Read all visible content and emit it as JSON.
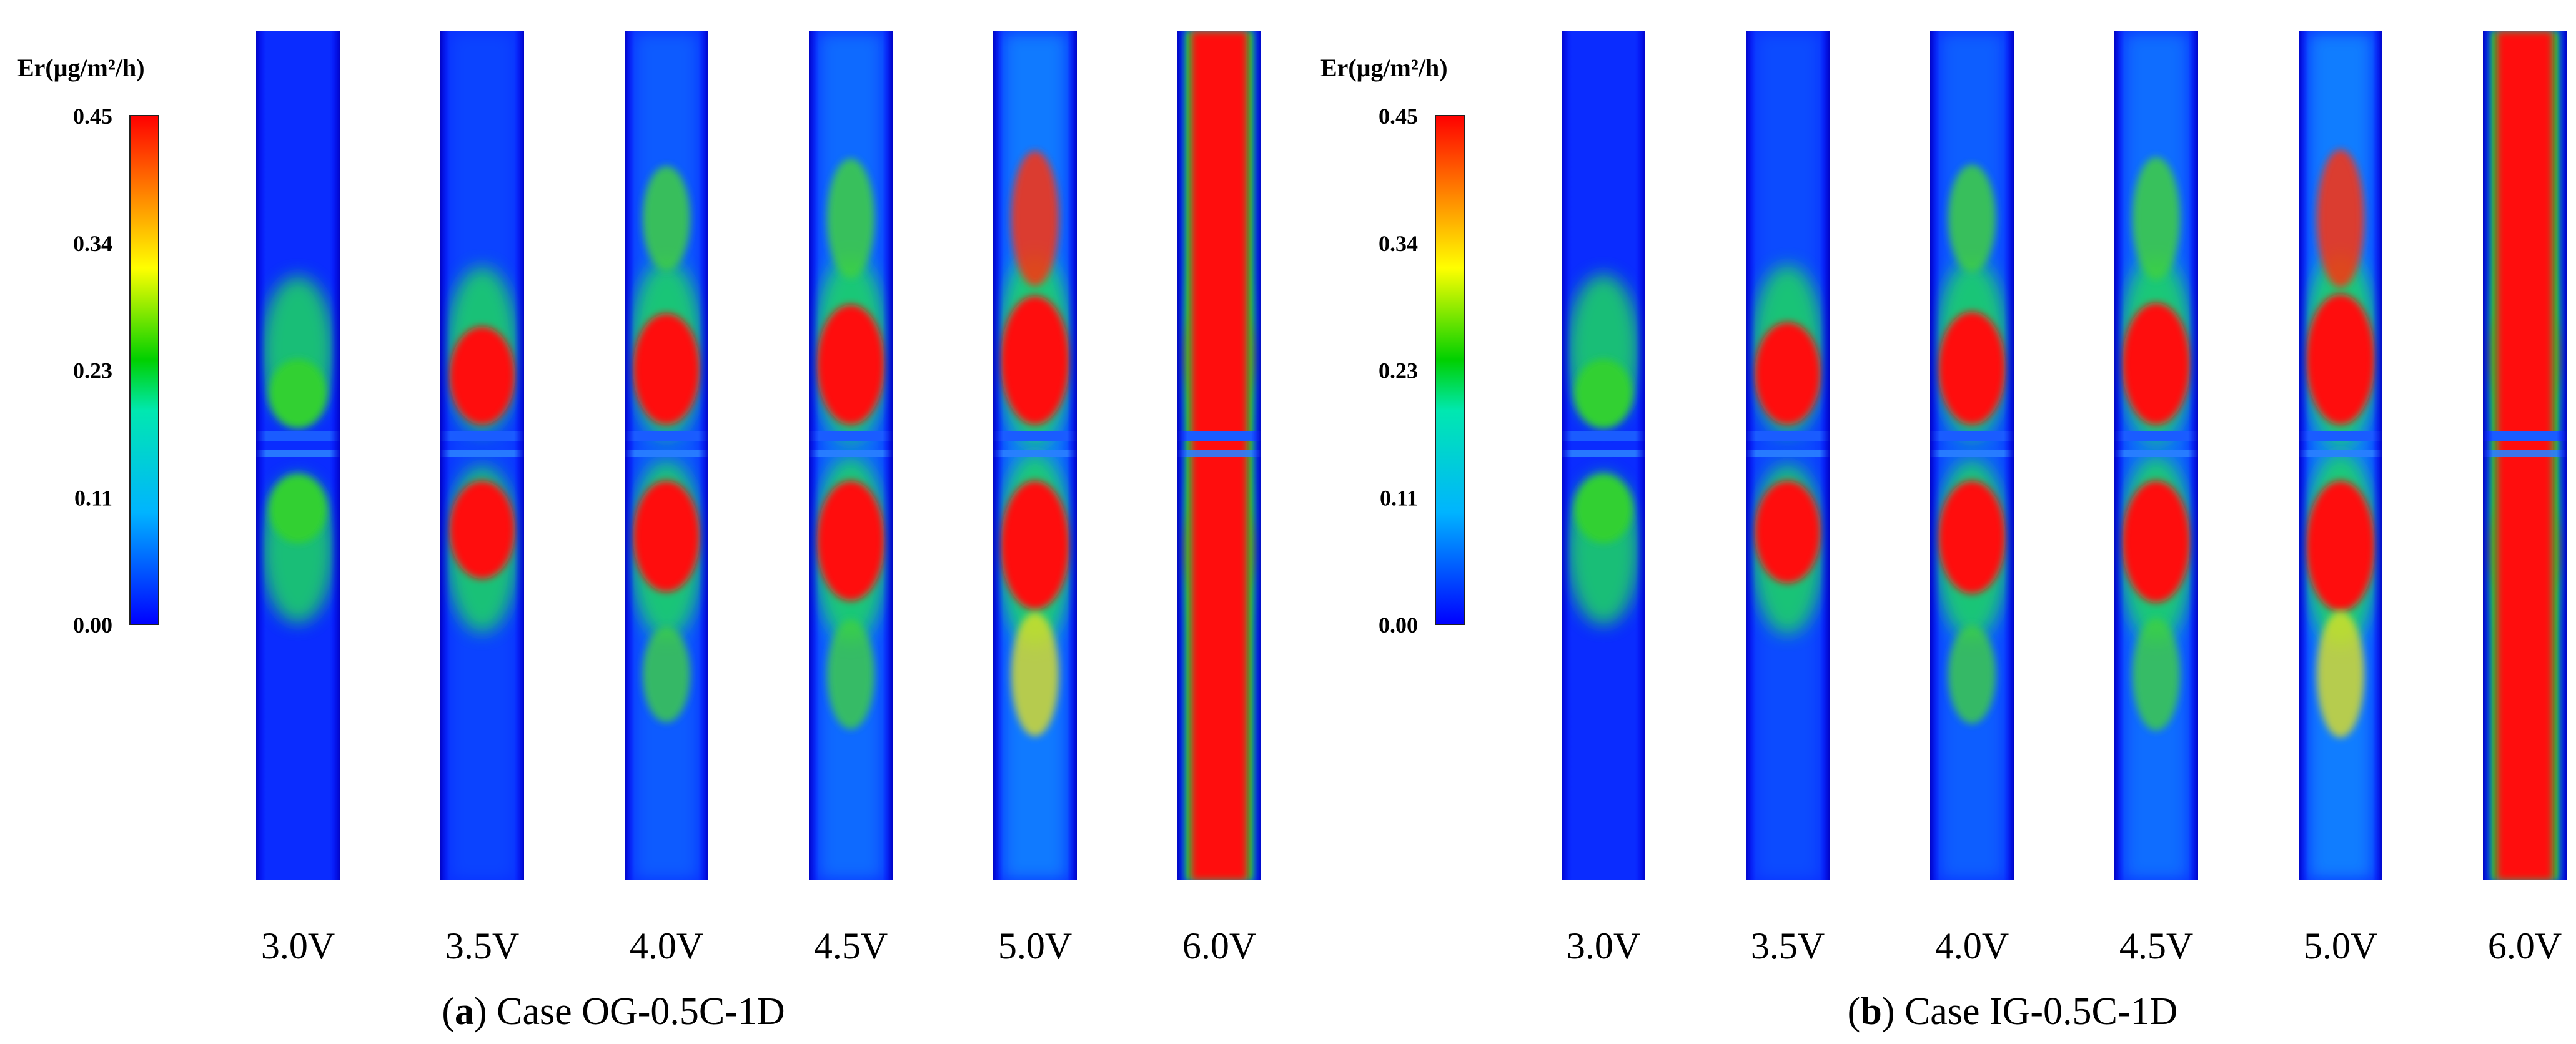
{
  "chart_data": [
    {
      "type": "heatmap",
      "panel_label": "a",
      "caption": "Case OG-0.5C-1D",
      "colorbar": {
        "title": "Er(μg/m²/h)",
        "ticks": [
          "0.45",
          "0.34",
          "0.23",
          "0.11",
          "0.00"
        ],
        "range": [
          0.0,
          0.45
        ],
        "colors": [
          "#0000ff",
          "#00e0ff",
          "#00e000",
          "#ffff00",
          "#ff8000",
          "#ff0000"
        ]
      },
      "columns": [
        {
          "label": "3.0V",
          "intensity": 0.3
        },
        {
          "label": "3.5V",
          "intensity": 0.55
        },
        {
          "label": "4.0V",
          "intensity": 0.7
        },
        {
          "label": "4.5V",
          "intensity": 0.8
        },
        {
          "label": "5.0V",
          "intensity": 0.9
        },
        {
          "label": "6.0V",
          "intensity": 1.0
        }
      ]
    },
    {
      "type": "heatmap",
      "panel_label": "b",
      "caption": "Case IG-0.5C-1D",
      "colorbar": {
        "title": "Er(μg/m²/h)",
        "ticks": [
          "0.45",
          "0.34",
          "0.23",
          "0.11",
          "0.00"
        ],
        "range": [
          0.0,
          0.45
        ],
        "colors": [
          "#0000ff",
          "#00e0ff",
          "#00e000",
          "#ffff00",
          "#ff8000",
          "#ff0000"
        ]
      },
      "columns": [
        {
          "label": "3.0V",
          "intensity": 0.35
        },
        {
          "label": "3.5V",
          "intensity": 0.6
        },
        {
          "label": "4.0V",
          "intensity": 0.72
        },
        {
          "label": "4.5V",
          "intensity": 0.82
        },
        {
          "label": "5.0V",
          "intensity": 0.92
        },
        {
          "label": "6.0V",
          "intensity": 1.0
        }
      ]
    }
  ]
}
